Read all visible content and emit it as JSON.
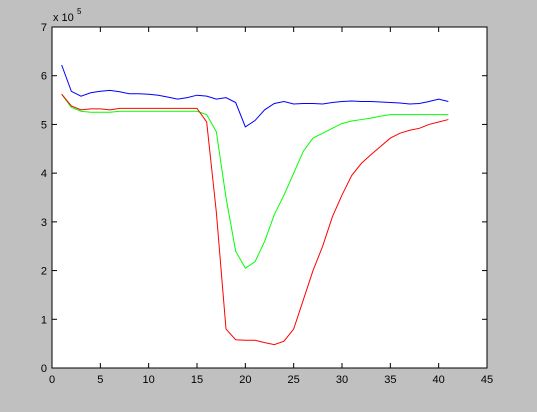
{
  "chart_data": {
    "type": "line",
    "x": [
      1,
      2,
      3,
      4,
      5,
      6,
      7,
      8,
      9,
      10,
      11,
      12,
      13,
      14,
      15,
      16,
      17,
      18,
      19,
      20,
      21,
      22,
      23,
      24,
      25,
      26,
      27,
      28,
      29,
      30,
      31,
      32,
      33,
      34,
      35,
      36,
      37,
      38,
      39,
      40,
      41
    ],
    "series": [
      {
        "color": "#0000ff",
        "values": [
          6.22,
          5.68,
          5.58,
          5.65,
          5.68,
          5.7,
          5.67,
          5.63,
          5.63,
          5.62,
          5.6,
          5.56,
          5.52,
          5.55,
          5.6,
          5.58,
          5.52,
          5.55,
          5.45,
          4.95,
          5.08,
          5.3,
          5.43,
          5.47,
          5.42,
          5.43,
          5.43,
          5.42,
          5.45,
          5.47,
          5.48,
          5.47,
          5.47,
          5.46,
          5.45,
          5.44,
          5.42,
          5.43,
          5.47,
          5.52,
          5.47
        ]
      },
      {
        "color": "#00ff00",
        "values": [
          5.62,
          5.35,
          5.27,
          5.25,
          5.25,
          5.25,
          5.27,
          5.27,
          5.27,
          5.27,
          5.27,
          5.27,
          5.27,
          5.27,
          5.27,
          5.2,
          4.85,
          3.5,
          2.4,
          2.05,
          2.18,
          2.6,
          3.15,
          3.55,
          4.0,
          4.45,
          4.72,
          4.82,
          4.92,
          5.02,
          5.07,
          5.1,
          5.13,
          5.17,
          5.2,
          5.2,
          5.2,
          5.2,
          5.2,
          5.2,
          5.2
        ]
      },
      {
        "color": "#ff0000",
        "values": [
          5.62,
          5.38,
          5.3,
          5.32,
          5.32,
          5.3,
          5.33,
          5.33,
          5.33,
          5.33,
          5.33,
          5.33,
          5.33,
          5.33,
          5.33,
          5.05,
          3.2,
          0.8,
          0.58,
          0.57,
          0.57,
          0.52,
          0.48,
          0.55,
          0.8,
          1.4,
          2.0,
          2.5,
          3.1,
          3.55,
          3.95,
          4.2,
          4.38,
          4.55,
          4.72,
          4.82,
          4.88,
          4.92,
          5.0,
          5.05,
          5.1
        ]
      }
    ],
    "xlim": [
      0,
      45
    ],
    "xticks": [
      0,
      5,
      10,
      15,
      20,
      25,
      30,
      35,
      40,
      45
    ],
    "ylim": [
      0,
      7
    ],
    "yticks": [
      0,
      1,
      2,
      3,
      4,
      5,
      6,
      7
    ],
    "y_multiplier": "x 10",
    "y_multiplier_exponent": "5",
    "grid": false
  }
}
